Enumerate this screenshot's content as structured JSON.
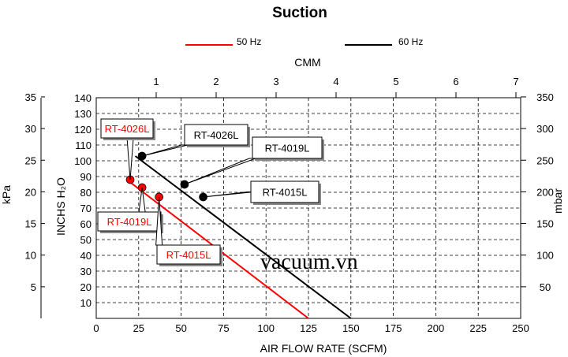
{
  "chart_data": {
    "type": "line",
    "title": "Suction",
    "legend": [
      {
        "label": "50 Hz",
        "color": "#ff0000"
      },
      {
        "label": "60 Hz",
        "color": "#000000"
      }
    ],
    "legend_placement": "top",
    "grid": true,
    "xlabel": "AIR FLOW RATE (SCFM)",
    "x_ticks": [
      "0",
      "25",
      "50",
      "75",
      "100",
      "125",
      "150",
      "175",
      "200",
      "225",
      "250"
    ],
    "xlim": [
      0,
      250
    ],
    "x_top_label": "CMM",
    "x_top_ticks": [
      "1",
      "2",
      "3",
      "4",
      "5",
      "6",
      "7"
    ],
    "ylabel": "INCHS H₂O",
    "y_ticks": [
      "10",
      "20",
      "30",
      "40",
      "50",
      "60",
      "70",
      "80",
      "90",
      "100",
      "110",
      "120",
      "130",
      "140"
    ],
    "ylim": [
      0,
      140
    ],
    "y_left_label": "kPa",
    "y_left_ticks": [
      "5",
      "10",
      "15",
      "20",
      "25",
      "30",
      "35"
    ],
    "y_right_label": "mbar",
    "y_right_ticks": [
      "50",
      "100",
      "150",
      "200",
      "250",
      "300",
      "350"
    ],
    "series": [
      {
        "name": "50 Hz",
        "color": "#ff0000",
        "x": [
          18,
          125
        ],
        "y": [
          88,
          0
        ]
      },
      {
        "name": "60 Hz",
        "color": "#000000",
        "x": [
          23,
          150
        ],
        "y": [
          103,
          0
        ]
      }
    ],
    "points": [
      {
        "label": "RT-4026L",
        "series": "50 Hz",
        "x": 20,
        "y": 88
      },
      {
        "label": "RT-4019L",
        "series": "50 Hz",
        "x": 27,
        "y": 83
      },
      {
        "label": "RT-4015L",
        "series": "50 Hz",
        "x": 37,
        "y": 77
      },
      {
        "label": "RT-4026L",
        "series": "60 Hz",
        "x": 27,
        "y": 103
      },
      {
        "label": "RT-4019L",
        "series": "60 Hz",
        "x": 52,
        "y": 85
      },
      {
        "label": "RT-4015L",
        "series": "60 Hz",
        "x": 63,
        "y": 77
      }
    ]
  },
  "watermark": "vacuum.vn"
}
